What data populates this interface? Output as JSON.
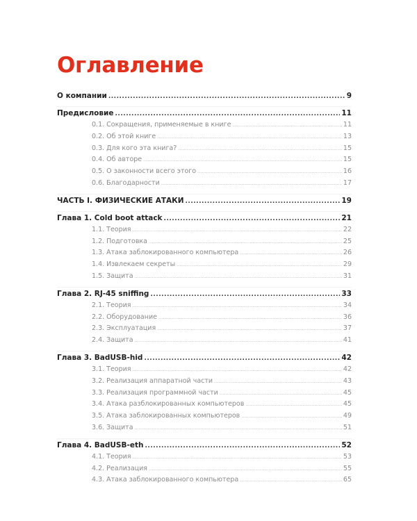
{
  "title": "Оглавление",
  "accent_color": "#e0301e",
  "sections": [
    {
      "label": "О компании",
      "page": "9",
      "items": []
    },
    {
      "label": "Предисловие",
      "page": "11",
      "items": [
        {
          "label": "0.1. Сокращения, применяемые в книге",
          "page": "11"
        },
        {
          "label": "0.2. Об этой книге",
          "page": "13"
        },
        {
          "label": "0.3. Для кого эта книга?",
          "page": "15"
        },
        {
          "label": "0.4. Об авторе",
          "page": "15"
        },
        {
          "label": "0.5. О законности всего этого",
          "page": "16"
        },
        {
          "label": "0.6. Благодарности",
          "page": "17"
        }
      ]
    },
    {
      "label": "ЧАСТЬ I. ФИЗИЧЕСКИЕ АТАКИ",
      "page": "19",
      "items": []
    },
    {
      "label": "Глава 1. Cold boot attack",
      "page": "21",
      "items": [
        {
          "label": "1.1. Теория",
          "page": "22"
        },
        {
          "label": "1.2. Подготовка",
          "page": "25"
        },
        {
          "label": "1.3. Атака заблокированного компьютера",
          "page": "26"
        },
        {
          "label": "1.4. Извлекаем секреты",
          "page": "29"
        },
        {
          "label": "1.5. Защита",
          "page": "31"
        }
      ]
    },
    {
      "label": "Глава 2. RJ-45 sniffing",
      "page": "33",
      "items": [
        {
          "label": "2.1. Теория",
          "page": "34"
        },
        {
          "label": "2.2. Оборудование",
          "page": "36"
        },
        {
          "label": "2.3. Эксплуатация",
          "page": "37"
        },
        {
          "label": "2.4. Защита",
          "page": "41"
        }
      ]
    },
    {
      "label": "Глава 3. BadUSB-hid",
      "page": "42",
      "items": [
        {
          "label": "3.1. Теория",
          "page": "42"
        },
        {
          "label": "3.2. Реализация аппаратной части",
          "page": "43"
        },
        {
          "label": "3.3. Реализация программной части",
          "page": "45"
        },
        {
          "label": "3.4. Атака разблокированных компьютеров",
          "page": "45"
        },
        {
          "label": "3.5. Атака заблокированных компьютеров",
          "page": "49"
        },
        {
          "label": "3.6. Защита",
          "page": "51"
        }
      ]
    },
    {
      "label": "Глава 4. BadUSB-eth",
      "page": "52",
      "items": [
        {
          "label": "4.1. Теория",
          "page": "53"
        },
        {
          "label": "4.2. Реализация",
          "page": "55"
        },
        {
          "label": "4.3. Атака заблокированного компьютера",
          "page": "65"
        }
      ]
    }
  ]
}
